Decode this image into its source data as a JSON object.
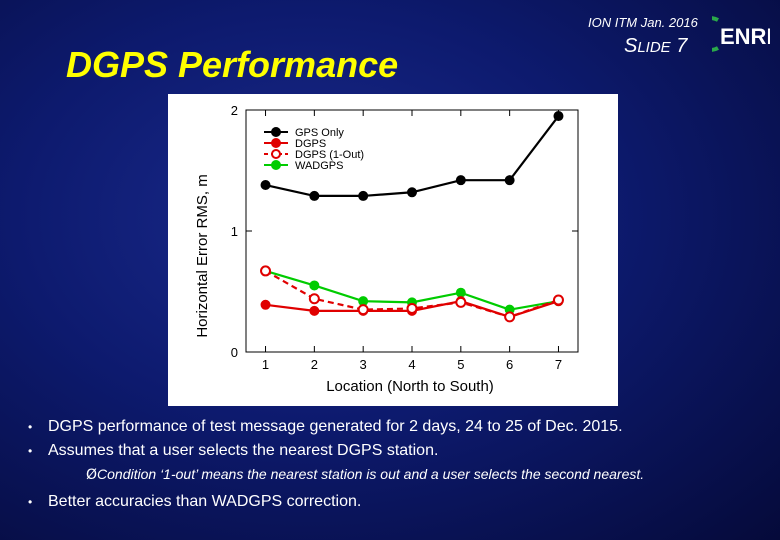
{
  "header": {
    "title": "DGPS Performance",
    "conference": "ION ITM Jan. 2016",
    "slide_prefix_big": "S",
    "slide_prefix_small": "LIDE",
    "slide_number": "7",
    "logo_text": "ENRI"
  },
  "chart_data": {
    "type": "line",
    "title": "",
    "xlabel": "Location (North to South)",
    "ylabel": "Horizontal Error RMS, m",
    "x": [
      1,
      2,
      3,
      4,
      5,
      6,
      7
    ],
    "xlim": [
      0.6,
      7.4
    ],
    "ylim": [
      0,
      2
    ],
    "yticks": [
      0,
      1,
      2
    ],
    "series": [
      {
        "name": "GPS Only",
        "color": "#000000",
        "marker": "filled",
        "dashed": false,
        "values": [
          1.38,
          1.29,
          1.29,
          1.32,
          1.42,
          1.42,
          1.95
        ]
      },
      {
        "name": "DGPS",
        "color": "#e00000",
        "marker": "filled",
        "dashed": false,
        "values": [
          0.39,
          0.34,
          0.34,
          0.34,
          0.42,
          0.29,
          0.42
        ]
      },
      {
        "name": "DGPS (1-Out)",
        "color": "#e00000",
        "marker": "open",
        "dashed": true,
        "values": [
          0.67,
          0.44,
          0.35,
          0.36,
          0.41,
          0.29,
          0.43
        ]
      },
      {
        "name": "WADGPS",
        "color": "#00cc00",
        "marker": "filled",
        "dashed": false,
        "values": [
          0.67,
          0.55,
          0.42,
          0.41,
          0.49,
          0.35,
          0.42
        ]
      }
    ]
  },
  "bullets": {
    "b1": "DGPS performance of test message generated for 2 days, 24 to 25 of Dec. 2015.",
    "b2": "Assumes that a user selects the nearest DGPS station.",
    "sub_arrow": "Ø",
    "sub": "Condition ‘1-out’ means the nearest station is out and a user selects the second nearest.",
    "b3": "Better accuracies than WADGPS correction.",
    "dot": "•"
  }
}
